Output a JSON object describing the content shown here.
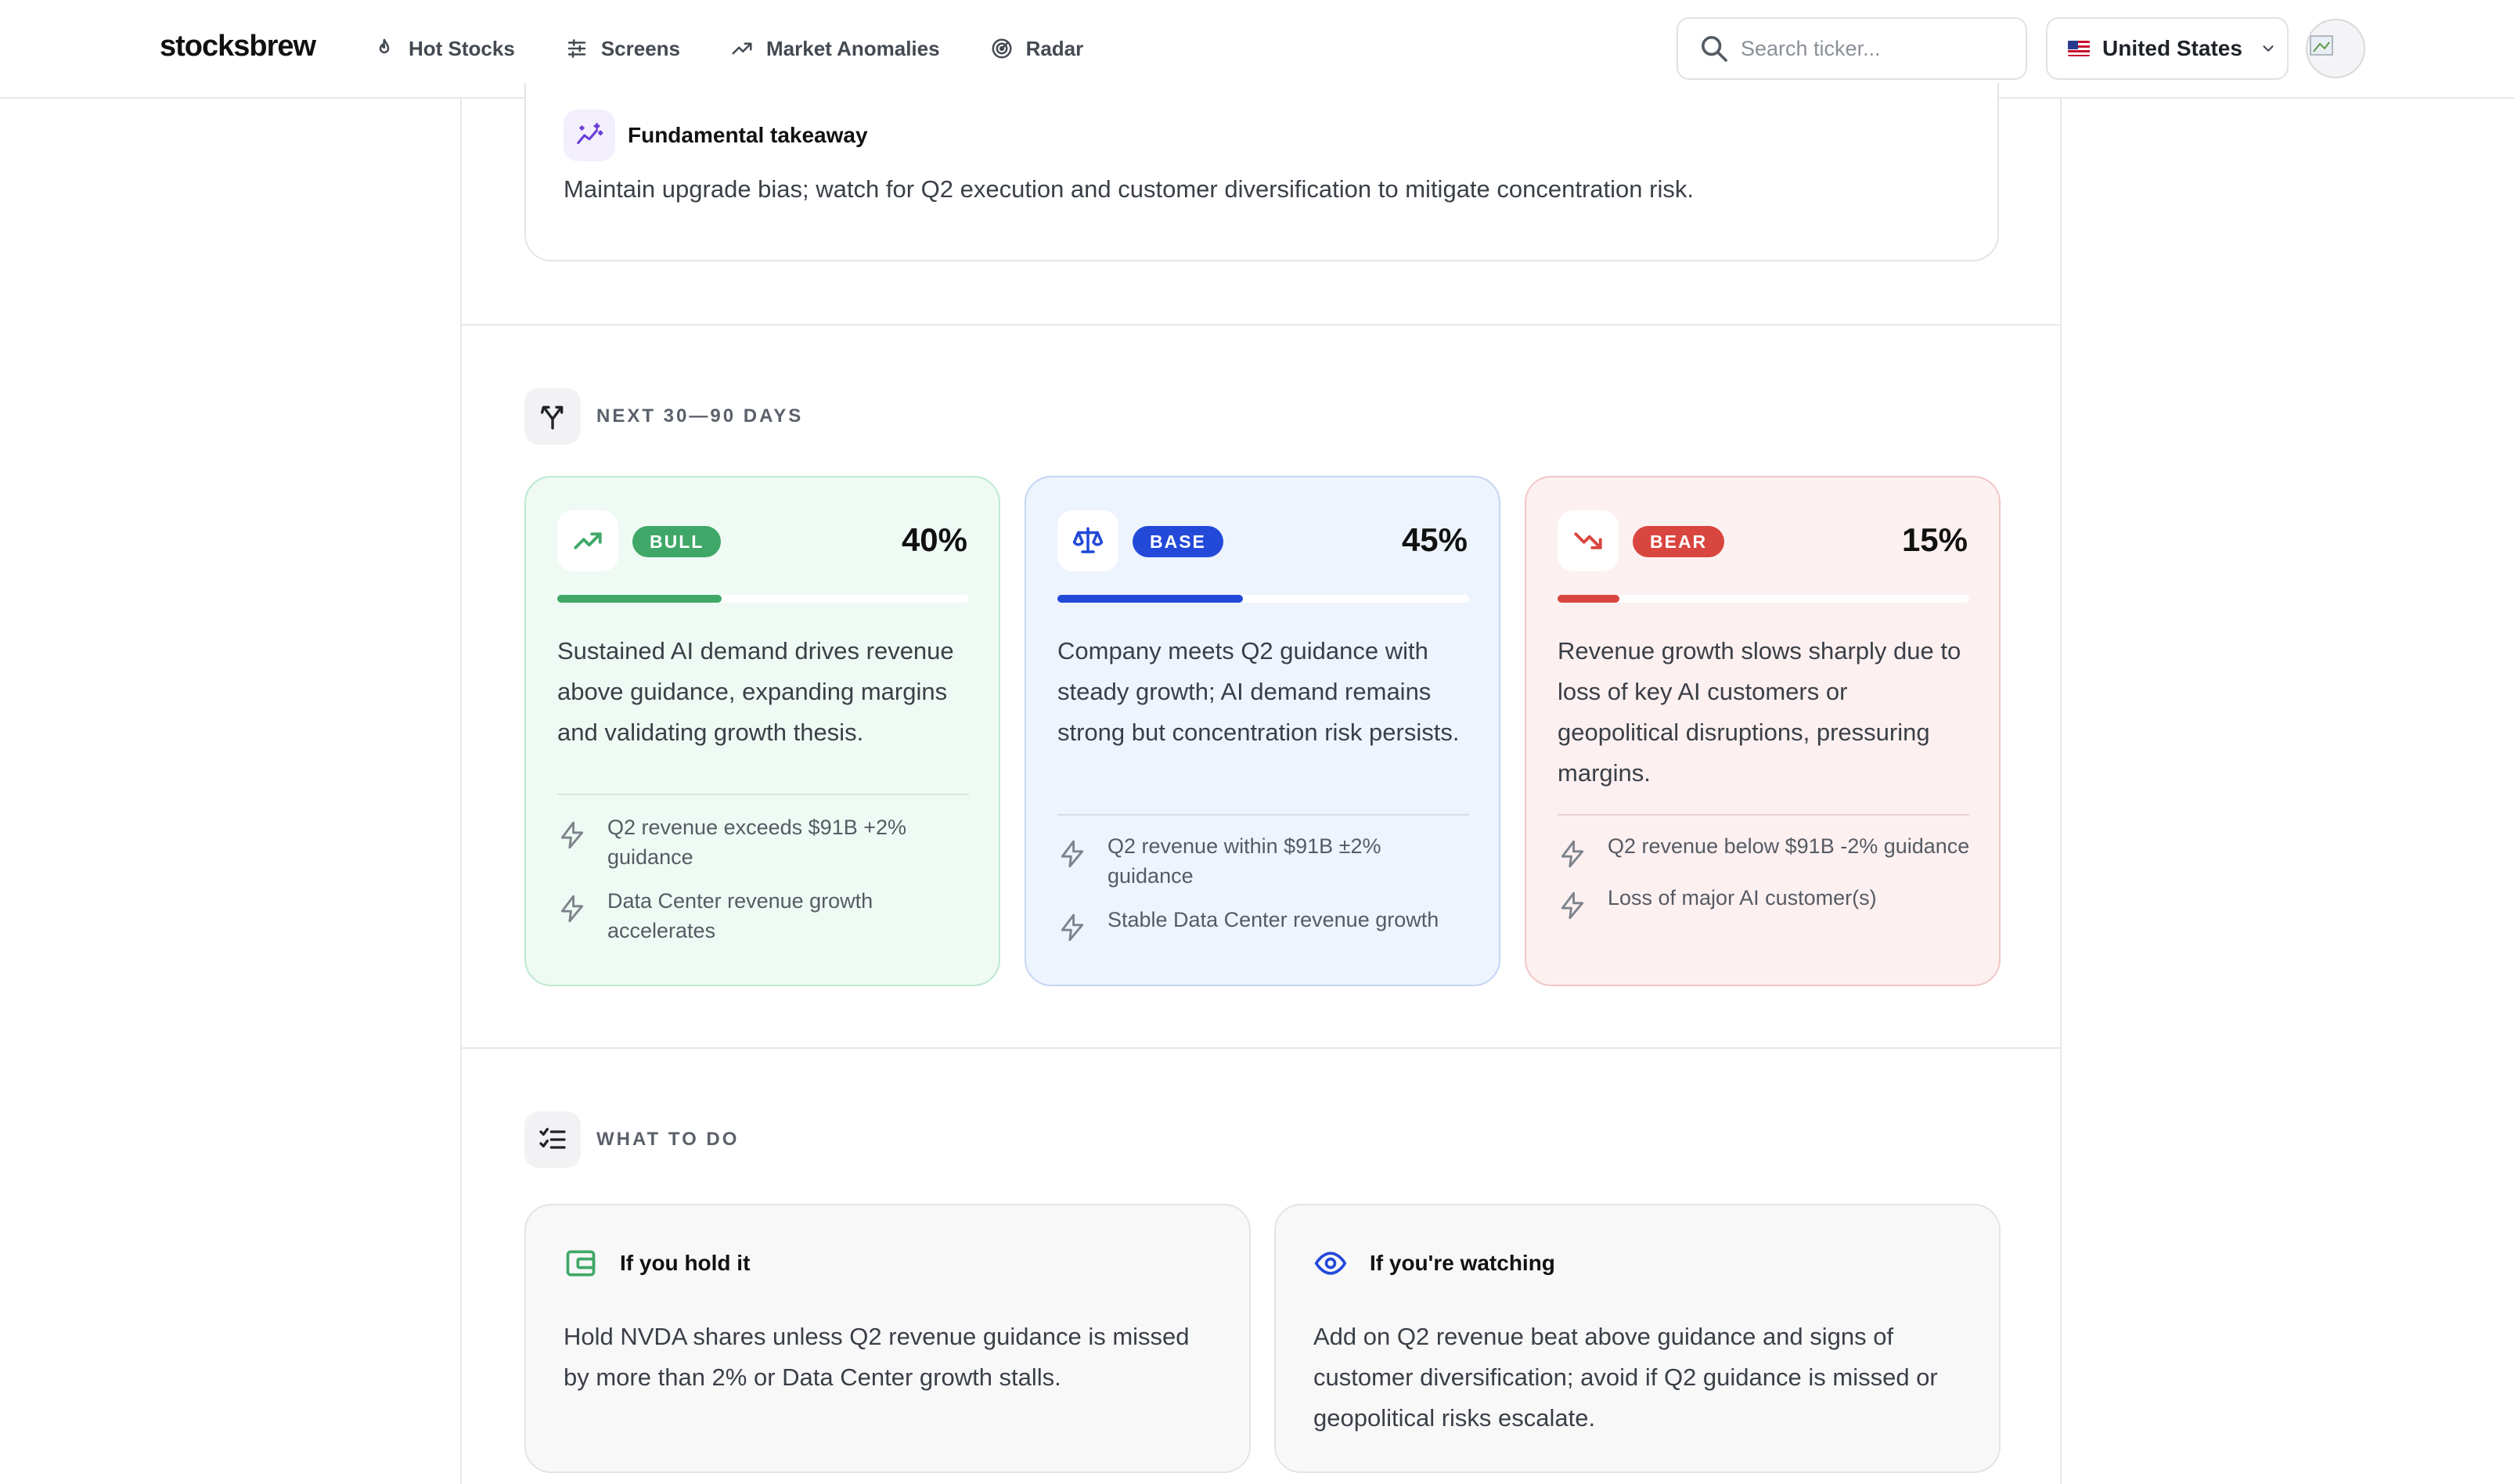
{
  "brand": {
    "logo": "stocksbrew"
  },
  "nav": {
    "items": [
      {
        "label": "Hot Stocks",
        "icon": "flame-icon"
      },
      {
        "label": "Screens",
        "icon": "sliders-icon"
      },
      {
        "label": "Market Anomalies",
        "icon": "trending-up-icon"
      },
      {
        "label": "Radar",
        "icon": "radar-icon"
      }
    ],
    "search_placeholder": "Search ticker...",
    "country": "United States"
  },
  "takeaway": {
    "title": "Fundamental takeaway",
    "text": "Maintain upgrade bias; watch for Q2 execution and customer diversification to mitigate concentration risk."
  },
  "scenarios": {
    "title": "NEXT 30—90 DAYS",
    "items": [
      {
        "badge": "BULL",
        "probability_label": "40%",
        "probability": 40,
        "description": "Sustained AI demand drives revenue above guidance, expanding margins and validating growth thesis.",
        "triggers": [
          "Q2 revenue exceeds $91B +2% guidance",
          "Data Center revenue growth accelerates"
        ],
        "color": "#3fa868"
      },
      {
        "badge": "BASE",
        "probability_label": "45%",
        "probability": 45,
        "description": "Company meets Q2 guidance with steady growth; AI demand remains strong but concentration risk persists.",
        "triggers": [
          "Q2 revenue within $91B ±2% guidance",
          "Stable Data Center revenue growth"
        ],
        "color": "#2349d9"
      },
      {
        "badge": "BEAR",
        "probability_label": "15%",
        "probability": 15,
        "description": "Revenue growth slows sharply due to loss of key AI customers or geopolitical disruptions, pressuring margins.",
        "triggers": [
          "Q2 revenue below $91B -2% guidance",
          "Loss of major AI customer(s)"
        ],
        "color": "#d9463f"
      }
    ]
  },
  "what_to_do": {
    "title": "WHAT TO DO",
    "hold": {
      "title": "If you hold it",
      "text": "Hold NVDA shares unless Q2 revenue guidance is missed by more than 2% or Data Center growth stalls."
    },
    "watch": {
      "title": "If you're watching",
      "text": "Add on Q2 revenue beat above guidance and signs of customer diversification; avoid if Q2 guidance is missed or geopolitical risks escalate."
    }
  }
}
